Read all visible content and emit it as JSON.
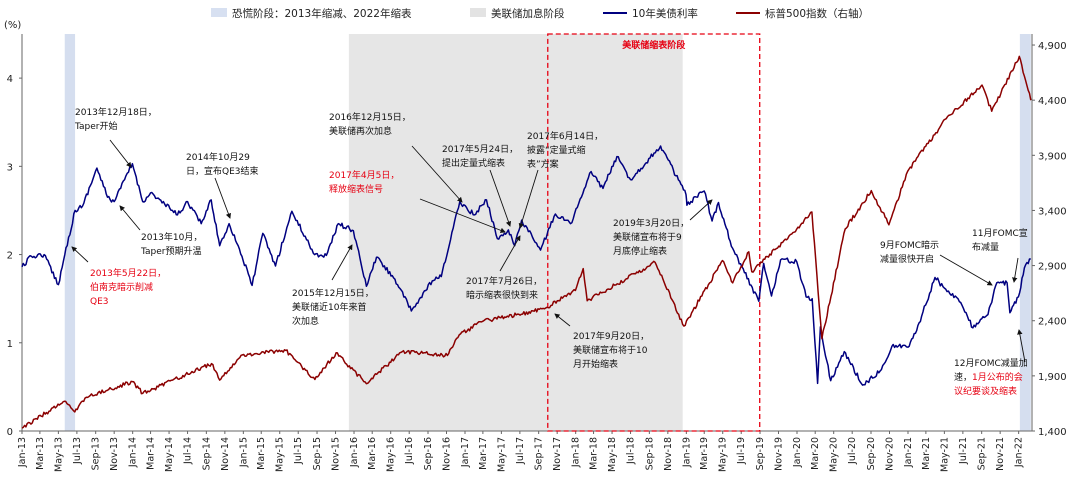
{
  "chart_data": {
    "type": "line",
    "title": "",
    "left_axis_label": "(%)",
    "left_ylim": [
      0,
      4.5
    ],
    "left_ticks": [
      "0",
      "1",
      "2",
      "3",
      "4"
    ],
    "right_ylim": [
      1400,
      5000
    ],
    "right_ticks": [
      "1,400",
      "1,900",
      "2,400",
      "2,900",
      "3,400",
      "3,900",
      "4,400",
      "4,900"
    ],
    "x_start": "2013-01",
    "x_end": "2022-02",
    "x_ticks": [
      "Jan-13",
      "Mar-13",
      "May-13",
      "Jul-13",
      "Sep-13",
      "Nov-13",
      "Jan-14",
      "Mar-14",
      "May-14",
      "Jul-14",
      "Sep-14",
      "Nov-14",
      "Jan-15",
      "Mar-15",
      "May-15",
      "Jul-15",
      "Sep-15",
      "Nov-15",
      "Jan-16",
      "Mar-16",
      "May-16",
      "Jul-16",
      "Sep-16",
      "Nov-16",
      "Jan-17",
      "Mar-17",
      "May-17",
      "Jul-17",
      "Sep-17",
      "Nov-17",
      "Jan-18",
      "Mar-18",
      "May-18",
      "Jul-18",
      "Sep-18",
      "Nov-18",
      "Jan-19",
      "Mar-19",
      "May-19",
      "Jul-19",
      "Sep-19",
      "Nov-19",
      "Jan-20",
      "Mar-20",
      "May-20",
      "Jul-20",
      "Sep-20",
      "Nov-20",
      "Jan-21",
      "Mar-21",
      "May-21",
      "Jul-21",
      "Sep-21",
      "Nov-21",
      "Jan-22"
    ],
    "legend": [
      {
        "label": "恐慌阶段：2013年缩减、2022年缩表",
        "color": "#d7e0f1",
        "kind": "band"
      },
      {
        "label": "美联储加息阶段",
        "color": "#e3e3e3",
        "kind": "band"
      },
      {
        "label": "10年美债利率",
        "color": "#000080",
        "kind": "line"
      },
      {
        "label": "标普500指数（右轴）",
        "color": "#8b0000",
        "kind": "line"
      }
    ],
    "bands": [
      {
        "kind": "panic",
        "start": "2013-05-22",
        "end": "2013-06-25"
      },
      {
        "kind": "hike",
        "start": "2015-12-15",
        "end": "2018-12-20"
      },
      {
        "kind": "panic",
        "start": "2022-01-05",
        "end": "2022-02-10"
      }
    ],
    "box": {
      "label": "美联储缩表阶段",
      "start": "2017-10-01",
      "end": "2019-08-31"
    },
    "series": [
      {
        "name": "10年美债利率",
        "axis": "left",
        "color": "#000080",
        "points": [
          [
            "2013-01-01",
            1.86
          ],
          [
            "2013-02-01",
            1.98
          ],
          [
            "2013-03-15",
            2.0
          ],
          [
            "2013-05-01",
            1.66
          ],
          [
            "2013-05-22",
            2.0
          ],
          [
            "2013-06-25",
            2.5
          ],
          [
            "2013-07-20",
            2.55
          ],
          [
            "2013-09-05",
            2.98
          ],
          [
            "2013-10-10",
            2.65
          ],
          [
            "2013-11-01",
            2.6
          ],
          [
            "2013-12-31",
            3.03
          ],
          [
            "2014-02-03",
            2.6
          ],
          [
            "2014-03-01",
            2.7
          ],
          [
            "2014-05-29",
            2.45
          ],
          [
            "2014-07-01",
            2.6
          ],
          [
            "2014-08-15",
            2.35
          ],
          [
            "2014-09-17",
            2.62
          ],
          [
            "2014-10-15",
            2.1
          ],
          [
            "2014-11-15",
            2.35
          ],
          [
            "2014-12-15",
            2.1
          ],
          [
            "2015-01-30",
            1.65
          ],
          [
            "2015-03-06",
            2.24
          ],
          [
            "2015-04-17",
            1.87
          ],
          [
            "2015-06-10",
            2.49
          ],
          [
            "2015-08-24",
            2.0
          ],
          [
            "2015-10-02",
            1.99
          ],
          [
            "2015-11-10",
            2.35
          ],
          [
            "2015-12-30",
            2.27
          ],
          [
            "2016-02-11",
            1.64
          ],
          [
            "2016-03-15",
            1.97
          ],
          [
            "2016-05-15",
            1.72
          ],
          [
            "2016-07-08",
            1.36
          ],
          [
            "2016-09-15",
            1.7
          ],
          [
            "2016-10-15",
            1.75
          ],
          [
            "2016-12-15",
            2.6
          ],
          [
            "2017-02-01",
            2.45
          ],
          [
            "2017-03-13",
            2.62
          ],
          [
            "2017-04-18",
            2.18
          ],
          [
            "2017-05-24",
            2.28
          ],
          [
            "2017-06-14",
            2.1
          ],
          [
            "2017-07-07",
            2.39
          ],
          [
            "2017-09-07",
            2.05
          ],
          [
            "2017-10-26",
            2.46
          ],
          [
            "2017-12-15",
            2.35
          ],
          [
            "2018-01-20",
            2.65
          ],
          [
            "2018-02-21",
            2.94
          ],
          [
            "2018-04-01",
            2.75
          ],
          [
            "2018-05-17",
            3.11
          ],
          [
            "2018-07-01",
            2.85
          ],
          [
            "2018-10-08",
            3.23
          ],
          [
            "2018-12-31",
            2.68
          ],
          [
            "2019-01-03",
            2.56
          ],
          [
            "2019-03-01",
            2.72
          ],
          [
            "2019-03-27",
            2.38
          ],
          [
            "2019-04-17",
            2.59
          ],
          [
            "2019-06-03",
            2.07
          ],
          [
            "2019-08-28",
            1.47
          ],
          [
            "2019-09-13",
            1.9
          ],
          [
            "2019-10-09",
            1.53
          ],
          [
            "2019-11-08",
            1.94
          ],
          [
            "2019-12-31",
            1.92
          ],
          [
            "2020-01-31",
            1.52
          ],
          [
            "2020-02-20",
            1.5
          ],
          [
            "2020-03-09",
            0.54
          ],
          [
            "2020-03-18",
            1.18
          ],
          [
            "2020-04-21",
            0.57
          ],
          [
            "2020-06-05",
            0.9
          ],
          [
            "2020-08-04",
            0.52
          ],
          [
            "2020-10-01",
            0.68
          ],
          [
            "2020-11-09",
            0.96
          ],
          [
            "2021-01-05",
            0.96
          ],
          [
            "2021-02-15",
            1.3
          ],
          [
            "2021-03-31",
            1.74
          ],
          [
            "2021-05-01",
            1.62
          ],
          [
            "2021-06-15",
            1.5
          ],
          [
            "2021-08-03",
            1.17
          ],
          [
            "2021-09-22",
            1.32
          ],
          [
            "2021-10-21",
            1.68
          ],
          [
            "2021-11-24",
            1.68
          ],
          [
            "2021-12-03",
            1.34
          ],
          [
            "2021-12-31",
            1.52
          ],
          [
            "2022-01-20",
            1.85
          ],
          [
            "2022-02-10",
            1.95
          ]
        ]
      },
      {
        "name": "标普500指数（右轴）",
        "axis": "right",
        "color": "#8b0000",
        "points": [
          [
            "2013-01-01",
            1426
          ],
          [
            "2013-05-21",
            1669
          ],
          [
            "2013-06-24",
            1573
          ],
          [
            "2013-08-01",
            1706
          ],
          [
            "2013-12-31",
            1848
          ],
          [
            "2014-02-03",
            1741
          ],
          [
            "2014-09-18",
            2011
          ],
          [
            "2014-10-15",
            1862
          ],
          [
            "2014-12-29",
            2090
          ],
          [
            "2015-05-21",
            2131
          ],
          [
            "2015-08-25",
            1867
          ],
          [
            "2015-11-03",
            2109
          ],
          [
            "2016-02-11",
            1829
          ],
          [
            "2016-06-08",
            2119
          ],
          [
            "2016-11-04",
            2085
          ],
          [
            "2016-12-13",
            2271
          ],
          [
            "2017-03-01",
            2396
          ],
          [
            "2017-06-19",
            2453
          ],
          [
            "2017-09-20",
            2508
          ],
          [
            "2017-12-31",
            2674
          ],
          [
            "2018-01-26",
            2873
          ],
          [
            "2018-02-08",
            2581
          ],
          [
            "2018-09-20",
            2930
          ],
          [
            "2018-12-24",
            2351
          ],
          [
            "2019-04-30",
            2945
          ],
          [
            "2019-06-03",
            2744
          ],
          [
            "2019-07-26",
            3025
          ],
          [
            "2019-08-05",
            2844
          ],
          [
            "2019-12-31",
            3231
          ],
          [
            "2020-02-19",
            3386
          ],
          [
            "2020-03-23",
            2237
          ],
          [
            "2020-06-08",
            3232
          ],
          [
            "2020-09-02",
            3580
          ],
          [
            "2020-10-30",
            3270
          ],
          [
            "2020-12-31",
            3756
          ],
          [
            "2021-05-07",
            4232
          ],
          [
            "2021-09-02",
            4537
          ],
          [
            "2021-10-04",
            4300
          ],
          [
            "2022-01-03",
            4797
          ],
          [
            "2022-02-10",
            4400
          ]
        ]
      }
    ],
    "annotations": [
      {
        "lines": [
          "2013年5月22日，",
          "伯南克暗示削减",
          "QE3"
        ],
        "red": true
      },
      {
        "lines": [
          "2013年12月18日，",
          "Taper开始"
        ],
        "red": false
      },
      {
        "lines": [
          "2013年10月，",
          "Taper预期升温"
        ],
        "red": false
      },
      {
        "lines": [
          "2014年10月29",
          "日，宣布QE3结束"
        ],
        "red": false
      },
      {
        "lines": [
          "2015年12月15日，",
          "美联储近10年来首",
          "次加息"
        ],
        "red": false
      },
      {
        "lines": [
          "2016年12月15日，",
          "美联储再次加息"
        ],
        "red": false
      },
      {
        "lines": [
          "2017年4月5日，",
          "释放缩表信号"
        ],
        "red": true
      },
      {
        "lines": [
          "2017年5月24日，",
          "提出定量式缩表"
        ],
        "red": false
      },
      {
        "lines": [
          "2017年6月14日，",
          "披露“定量式缩",
          "表”方案"
        ],
        "red": false
      },
      {
        "lines": [
          "2017年7月26日，",
          "暗示缩表很快到来"
        ],
        "red": false
      },
      {
        "lines": [
          "2017年9月20日，",
          "美联储宣布将于10",
          "月开始缩表"
        ],
        "red": false
      },
      {
        "lines": [
          "2019年3月20日，",
          "美联储宣布将于9",
          "月底停止缩表"
        ],
        "red": false
      },
      {
        "lines": [
          "9月FOMC暗示",
          "减量很快开启"
        ],
        "red": false
      },
      {
        "lines": [
          "11月FOMC宣",
          "布减量"
        ],
        "red": false
      },
      {
        "lines": [
          "12月FOMC减量加",
          "速，1月公布的会",
          "议纪要谈及缩表"
        ],
        "red": false
      }
    ]
  }
}
